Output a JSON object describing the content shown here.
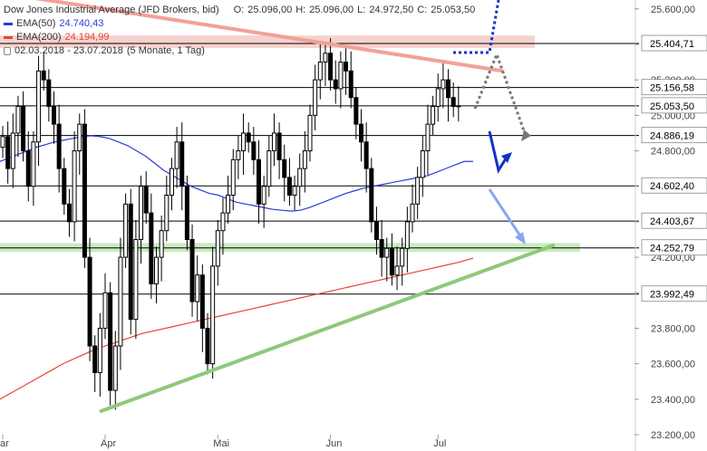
{
  "legend": {
    "title": "Dow Jones Industrial Average (JFD Brokers, bid)",
    "o_label": "O:",
    "o": "25.096,00",
    "h_label": "H:",
    "h": "25.096,00",
    "l_label": "L:",
    "l": "24.972,50",
    "c_label": "C:",
    "c": "25.053,50",
    "ema50_label": "EMA(50)",
    "ema50_value": "24.740,43",
    "ema50_color": "#2a3bd6",
    "ema200_label": "EMA(200)",
    "ema200_value": "24.194,99",
    "ema200_color": "#e8433a",
    "range_text": "02.03.2018 - 23.07.2018",
    "range_detail": "(5 Monate, 1 Tag)",
    "lock_icon": "lock-icon"
  },
  "chart_data": {
    "type": "candlestick",
    "ylim": [
      23200,
      25650
    ],
    "y_ticks": [
      {
        "value": 23200,
        "label": "23.200,00"
      },
      {
        "value": 23400,
        "label": "23.400,00"
      },
      {
        "value": 23600,
        "label": "23.600,00"
      },
      {
        "value": 23800,
        "label": "23.800,00"
      },
      {
        "value": 24000,
        "label": "24.000,00"
      },
      {
        "value": 24200,
        "label": "24.200,00"
      },
      {
        "value": 24400,
        "label": "24.400,00"
      },
      {
        "value": 24600,
        "label": "24.600,00"
      },
      {
        "value": 24800,
        "label": "24.800,00"
      },
      {
        "value": 25000,
        "label": "25.000,00"
      },
      {
        "value": 25200,
        "label": "25.200,00"
      },
      {
        "value": 25400,
        "label": "25.400,00"
      },
      {
        "value": 25600,
        "label": "25.600,00"
      }
    ],
    "x_labels": [
      "ar",
      "Apr",
      "Mai",
      "Jun",
      "Jul"
    ],
    "x_label_index": [
      0,
      20,
      42,
      64,
      85
    ],
    "levels": [
      25404.71,
      25156.58,
      25053.5,
      24886.19,
      24602.4,
      24403.67,
      24252.79,
      23992.49
    ],
    "level_labels": [
      "25.404,71",
      "25.156,58",
      "25.053,50",
      "24.886,19",
      "24.602,40",
      "24.403,67",
      "24.252,79",
      "23.992,49"
    ],
    "closes": [
      24880,
      24700,
      24900,
      25050,
      24800,
      24600,
      24850,
      25250,
      25200,
      25050,
      24950,
      24700,
      24500,
      24400,
      24800,
      24950,
      24200,
      23700,
      23550,
      23800,
      24000,
      23450,
      23700,
      24200,
      24500,
      23850,
      24300,
      24600,
      24450,
      24050,
      24200,
      24350,
      24550,
      24700,
      24850,
      24600,
      24300,
      23950,
      24100,
      23800,
      23600,
      24150,
      24350,
      24450,
      24550,
      24750,
      24800,
      24900,
      24850,
      24750,
      24500,
      24600,
      24800,
      24900,
      24750,
      24650,
      24550,
      24600,
      24700,
      24800,
      25000,
      25200,
      25300,
      25350,
      25200,
      25150,
      25300,
      25250,
      25100,
      24950,
      24850,
      24700,
      24400,
      24300,
      24200,
      24250,
      24100,
      24150,
      24250,
      24400,
      24500,
      24650,
      24800,
      24950,
      25050,
      25150,
      25200,
      25100,
      25050,
      25053.5
    ],
    "ema50": [
      24740,
      24760,
      24780,
      24800,
      24820,
      24835,
      24850,
      24860,
      24870,
      24880,
      24885,
      24880,
      24870,
      24850,
      24830,
      24800,
      24770,
      24730,
      24690,
      24660,
      24630,
      24600,
      24580,
      24560,
      24550,
      24530,
      24510,
      24500,
      24490,
      24480,
      24470,
      24465,
      24460,
      24465,
      24480,
      24500,
      24520,
      24540,
      24560,
      24575,
      24590,
      24600,
      24610,
      24620,
      24630,
      24640,
      24650,
      24660,
      24680,
      24700,
      24720,
      24740,
      24740
    ],
    "ema200": [
      23400,
      23450,
      23500,
      23550,
      23600,
      23640,
      23680,
      23710,
      23740,
      23770,
      23790,
      23810,
      23830,
      23850,
      23870,
      23890,
      23910,
      23930,
      23950,
      23970,
      23990,
      24010,
      24030,
      24050,
      24070,
      24090,
      24110,
      24130,
      24150,
      24170,
      24194.99
    ],
    "trend_support": [
      23330,
      24270
    ],
    "trend_resistance": [
      25650,
      25250
    ],
    "zones": {
      "resistance_zone": [
        25380,
        25450
      ],
      "support_zone": [
        24230,
        24280
      ]
    },
    "colors": {
      "level_line": "#000000",
      "support_trend": "#8ec97a",
      "resistance_trend": "#f3a099",
      "resistance_zone": "#f6d2ce",
      "support_zone": "#c9eac0",
      "arrow_blue": "#1233c9",
      "arrow_lightblue": "#8aa6f0",
      "arrow_gray": "#777777",
      "label_box": "#ffffff"
    }
  }
}
